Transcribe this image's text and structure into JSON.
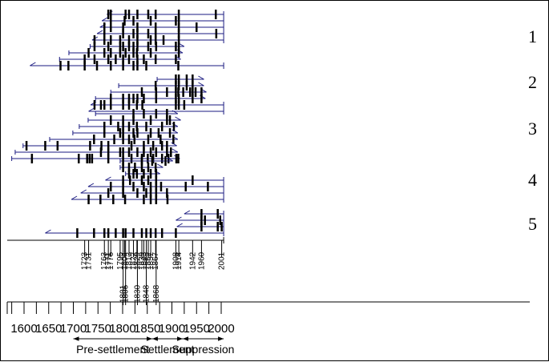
{
  "chart_data": {
    "type": "fire-history-chart",
    "x_axis": {
      "range": [
        1575,
        2007
      ],
      "major_ticks": [
        1600,
        1650,
        1700,
        1750,
        1800,
        1850,
        1900,
        1950,
        2000
      ],
      "tick_labels": [
        "1600",
        "1650",
        "1700",
        "1750",
        "1800",
        "1850",
        "1900",
        "1950",
        "2000"
      ],
      "minor_step": 25
    },
    "fire_years": [
      1723,
      1731,
      1763,
      1771,
      1776,
      1795,
      1801,
      1804,
      1806,
      1813,
      1822,
      1829,
      1830,
      1839,
      1843,
      1848,
      1852,
      1857,
      1867,
      1868,
      1908,
      1914,
      1942,
      1960,
      2001
    ],
    "fire_year_labels": [
      "1723",
      "1731",
      "1763",
      "1771",
      "1776",
      "1795",
      "1801",
      "1804",
      "1806",
      "1813",
      "1822",
      "1829",
      "1830",
      "1839",
      "1843",
      "1848",
      "1852",
      "1857",
      "1867",
      "1868",
      "1908",
      "1914",
      "1942",
      "1960",
      "2001"
    ],
    "periods": [
      {
        "label": "Pre-settlement",
        "start": 1700,
        "end": 1860
      },
      {
        "label": "Settlement",
        "start": 1860,
        "end": 1922
      },
      {
        "label": "Suppression",
        "start": 1922,
        "end": 2005
      }
    ],
    "groups": [
      {
        "label": "1",
        "samples": [
          {
            "start": 1768,
            "end": 2005,
            "fires": [
              1771,
              1776,
              1806,
              1813,
              1830,
              1852,
              1867,
              1914,
              1989
            ]
          },
          {
            "start": 1758,
            "end": 2005,
            "fires": [
              1776,
              1804,
              1822,
              1857,
              1908,
              1914
            ]
          },
          {
            "start": 1754,
            "end": 2005,
            "fires": [
              1763,
              1776,
              1801,
              1830,
              1867,
              1914,
              1950
            ]
          },
          {
            "start": 1748,
            "end": 2005,
            "fires": [
              1763,
              1801,
              1822,
              1830,
              1852,
              1867,
              1914,
              1990
            ]
          },
          {
            "start": 1738,
            "end": 2005,
            "fires": [
              1743,
              1763,
              1776,
              1795,
              1813,
              1830,
              1857,
              1867,
              1883,
              1914
            ]
          },
          {
            "start": 1734,
            "end": 1925,
            "fires": [
              1743,
              1771,
              1795,
              1801,
              1813,
              1822,
              1830,
              1852,
              1868,
              1908,
              1914
            ]
          },
          {
            "start": 1691,
            "end": 1922,
            "fires": [
              1731,
              1763,
              1776,
              1795,
              1806,
              1822,
              1829,
              1857,
              1914
            ]
          },
          {
            "start": 1672,
            "end": 1918,
            "fires": [
              1723,
              1743,
              1771,
              1786,
              1801,
              1813,
              1830,
              1843,
              1867,
              1908
            ]
          },
          {
            "start": 1612,
            "end": 2005,
            "fires": [
              1674,
              1690,
              1723,
              1748,
              1776,
              1801,
              1822,
              1830,
              1848,
              1913
            ]
          }
        ]
      },
      {
        "label": "2",
        "samples": [
          {
            "start": 1870,
            "end": 1965,
            "fires": [
              1908,
              1914,
              1930,
              1942
            ]
          },
          {
            "start": 1792,
            "end": 1965,
            "fires": [
              1867,
              1908,
              1914,
              1930,
              1942
            ]
          },
          {
            "start": 1776,
            "end": 1970,
            "fires": [
              1839,
              1868,
              1890,
              1908,
              1913,
              1923,
              1937,
              1942,
              1948,
              1960
            ]
          },
          {
            "start": 1745,
            "end": 1968,
            "fires": [
              1776,
              1801,
              1813,
              1822,
              1830,
              1843,
              1868,
              1908,
              1914,
              1942,
              1960
            ]
          },
          {
            "start": 1735,
            "end": 2005,
            "fires": [
              1743,
              1756,
              1763,
              1776,
              1801,
              1813,
              1829,
              1840,
              1908,
              1914,
              1925
            ]
          },
          {
            "start": 1731,
            "end": 2005,
            "fires": []
          }
        ]
      },
      {
        "label": "3",
        "samples": [
          {
            "start": 1745,
            "end": 1912,
            "fires": [
              1822,
              1843,
              1868,
              1890
            ]
          },
          {
            "start": 1730,
            "end": 1918,
            "fires": [
              1776,
              1801,
              1822,
              1857,
              1890,
              1896
            ]
          },
          {
            "start": 1712,
            "end": 1912,
            "fires": [
              1763,
              1791,
              1801,
              1813,
              1829,
              1848,
              1880,
              1904
            ]
          },
          {
            "start": 1699,
            "end": 1912,
            "fires": [
              1763,
              1795,
              1801,
              1822,
              1830,
              1857,
              1873,
              1896
            ]
          },
          {
            "start": 1652,
            "end": 1912,
            "fires": [
              1742,
              1783,
              1801,
              1813,
              1824,
              1852,
              1877,
              1903
            ]
          },
          {
            "start": 1598,
            "end": 1910,
            "fires": [
              1605,
              1643,
              1668,
              1734,
              1757,
              1771,
              1818,
              1843,
              1862,
              1880,
              1890
            ]
          },
          {
            "start": 1582,
            "end": 1912,
            "fires": [
              1756,
              1771,
              1795,
              1801,
              1813,
              1830,
              1843,
              1857,
              1868,
              1890,
              1898
            ]
          },
          {
            "start": 1575,
            "end": 1916,
            "fires": [
              1616,
              1711,
              1728,
              1733,
              1738,
              1771,
              1818,
              1839,
              1851,
              1862,
              1880,
              1893,
              1909,
              1913
            ]
          }
        ]
      },
      {
        "label": "4",
        "samples": [
          {
            "start": 1795,
            "end": 1902,
            "fires": [
              1801,
              1839,
              1860,
              1887
            ]
          },
          {
            "start": 1795,
            "end": 1882,
            "fires": [
              1801,
              1813,
              1825,
              1839,
              1852,
              1867
            ]
          },
          {
            "start": 1806,
            "end": 1876,
            "fires": [
              1813,
              1822,
              1829,
              1843,
              1857,
              1868
            ]
          },
          {
            "start": 1765,
            "end": 2005,
            "fires": [
              1801,
              1815,
              1839,
              1852,
              1868,
              1942
            ]
          },
          {
            "start": 1730,
            "end": 2005,
            "fires": [
              1776,
              1801,
              1822,
              1843,
              1857,
              1868,
              1878,
              1928,
              1973
            ]
          },
          {
            "start": 1715,
            "end": 2005,
            "fires": [
              1771,
              1801,
              1830,
              1848,
              1857,
              1868,
              1890
            ]
          },
          {
            "start": 1696,
            "end": 2005,
            "fires": [
              1731,
              1755,
              1781,
              1805,
              1843,
              1857,
              1868,
              1891
            ]
          }
        ]
      },
      {
        "label": "5",
        "samples": [
          {
            "start": 1925,
            "end": 2005,
            "fires": [
              1960,
              1993
            ]
          },
          {
            "start": 1908,
            "end": 2005,
            "fires": [
              1960,
              1967,
              1998
            ]
          },
          {
            "start": 1910,
            "end": 2005,
            "fires": [
              1960,
              1993,
              2001
            ]
          },
          {
            "start": 1643,
            "end": 2005,
            "fires": [
              1708,
              1742,
              1763,
              1771,
              1786,
              1801,
              1806,
              1822,
              1839,
              1848,
              1857,
              1867,
              1880,
              1908
            ]
          }
        ]
      }
    ]
  }
}
